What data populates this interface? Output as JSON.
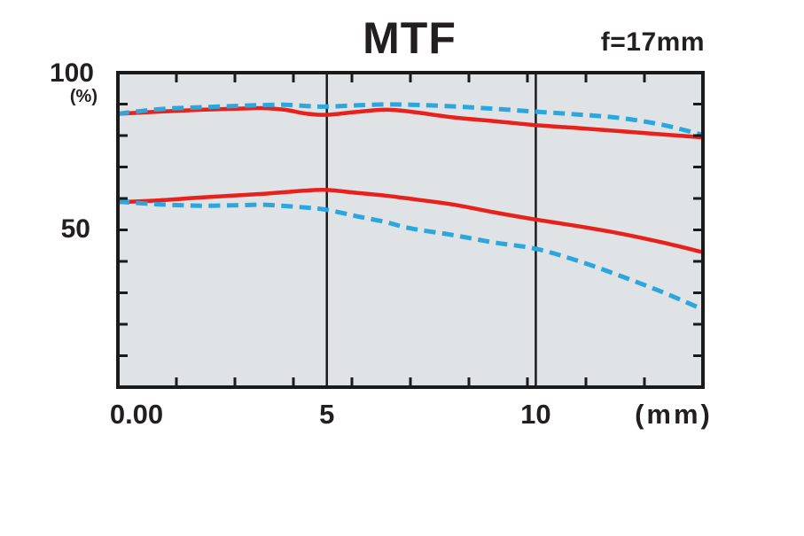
{
  "title": "MTF",
  "focal_label": "f=17mm",
  "y_axis": {
    "top_label": "100",
    "unit_label": "(%)",
    "mid_label": "50"
  },
  "x_axis": {
    "origin_label": "0.00",
    "tick_5_label": "5",
    "tick_10_label": "10",
    "unit_label": "(mm)"
  },
  "colors": {
    "solid_line": "#e8211c",
    "dashed_line": "#2ba7de",
    "plot_background": "#dfe3e5",
    "frame": "#1a1a1a",
    "text": "#231f20"
  },
  "chart_data": {
    "type": "line",
    "title": "MTF",
    "subtitle": "f=17mm",
    "xlabel": "(mm)",
    "ylabel": "(%)",
    "xlim": [
      0,
      14
    ],
    "ylim": [
      0,
      100
    ],
    "x_tick_labels": [
      "0.00",
      "5",
      "10"
    ],
    "x_tick_positions_mm": [
      0,
      5,
      10
    ],
    "y_tick_labels": [
      "100",
      "50"
    ],
    "y_tick_positions_pct": [
      100,
      50
    ],
    "vertical_lines_mm": [
      5,
      10
    ],
    "grid_divisions_per_side": 10,
    "legend_position": "none",
    "x": [
      0,
      1,
      2,
      3,
      3.5,
      4,
      4.5,
      5,
      5.7,
      6.4,
      7,
      8,
      9,
      10,
      11,
      12,
      13,
      14
    ],
    "series": [
      {
        "name": "red-solid-upper",
        "style": "solid",
        "color": "#e8211c",
        "values": [
          86.9,
          87.6,
          88.2,
          88.6,
          88.7,
          88.2,
          87.0,
          86.6,
          87.5,
          88.2,
          87.6,
          85.8,
          84.6,
          83.3,
          82.4,
          81.4,
          80.4,
          79.4
        ]
      },
      {
        "name": "blue-dashed-upper",
        "style": "dashed",
        "color": "#2ba7de",
        "values": [
          86.9,
          88.4,
          89.0,
          89.5,
          89.7,
          89.8,
          89.4,
          89.2,
          89.6,
          89.9,
          89.8,
          89.3,
          88.5,
          87.6,
          86.7,
          85.6,
          83.5,
          80.2
        ]
      },
      {
        "name": "red-solid-lower",
        "style": "solid",
        "color": "#e8211c",
        "values": [
          58.8,
          59.4,
          60.3,
          61.1,
          61.5,
          62.0,
          62.5,
          62.7,
          61.8,
          60.9,
          59.9,
          58.1,
          55.6,
          53.3,
          51.2,
          48.9,
          46.1,
          42.9
        ]
      },
      {
        "name": "blue-dashed-lower",
        "style": "dashed",
        "color": "#2ba7de",
        "values": [
          59.0,
          58.1,
          57.7,
          57.9,
          58.0,
          57.6,
          57.1,
          56.4,
          54.4,
          52.5,
          50.5,
          48.4,
          46.0,
          44.0,
          40.2,
          35.5,
          30.4,
          24.7
        ]
      }
    ]
  }
}
